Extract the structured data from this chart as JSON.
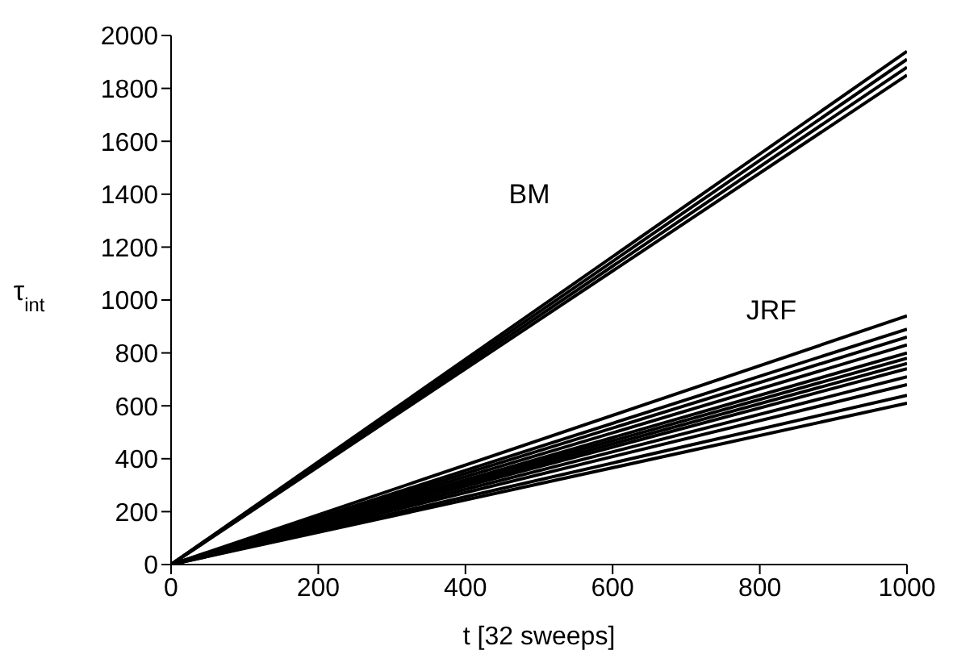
{
  "chart_data": {
    "type": "line",
    "xlabel": "t [32 sweeps]",
    "ylabel": "τ$_{int}$",
    "xlim": [
      0,
      1000
    ],
    "xticks": [
      0,
      200,
      400,
      600,
      800,
      1000
    ],
    "ylim": [
      0,
      2000
    ],
    "yticks": [
      0,
      200,
      400,
      600,
      800,
      1000,
      1200,
      1400,
      1600,
      1800,
      2000
    ],
    "grid": false,
    "legend": false,
    "marker": "none",
    "line_style": "solid",
    "annotations": [
      "BM",
      "JRF"
    ],
    "x": [
      0,
      1000
    ],
    "series": [
      {
        "color": "#000000",
        "values": [
          0,
          1850
        ]
      },
      {
        "color": "#000000",
        "values": [
          0,
          1880
        ]
      },
      {
        "color": "#000000",
        "values": [
          0,
          1910
        ]
      },
      {
        "color": "#000000",
        "values": [
          0,
          1940
        ]
      },
      {
        "color": "#000000",
        "values": [
          0,
          610
        ]
      },
      {
        "color": "#000000",
        "values": [
          0,
          640
        ]
      },
      {
        "color": "#000000",
        "values": [
          0,
          680
        ]
      },
      {
        "color": "#000000",
        "values": [
          0,
          710
        ]
      },
      {
        "color": "#000000",
        "values": [
          0,
          740
        ]
      },
      {
        "color": "#000000",
        "values": [
          0,
          760
        ]
      },
      {
        "color": "#000000",
        "values": [
          0,
          780
        ]
      },
      {
        "color": "#000000",
        "values": [
          0,
          800
        ]
      },
      {
        "color": "#000000",
        "values": [
          0,
          830
        ]
      },
      {
        "color": "#000000",
        "values": [
          0,
          860
        ]
      },
      {
        "color": "#000000",
        "values": [
          0,
          890
        ]
      },
      {
        "color": "#000000",
        "values": [
          0,
          940
        ]
      }
    ]
  }
}
